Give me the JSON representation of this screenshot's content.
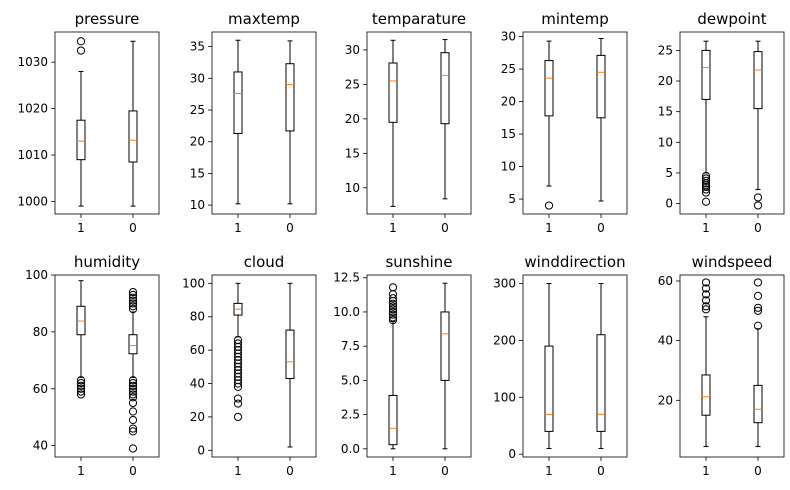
{
  "chart_data": [
    {
      "type": "box",
      "title": "pressure",
      "categories": [
        "1",
        "0"
      ],
      "ylim": [
        997.3,
        1036.5
      ],
      "yticks": [
        1000,
        1010,
        1020,
        1030
      ],
      "boxes": [
        {
          "whislo": 999,
          "q1": 1009,
          "med": 1013,
          "q3": 1017.5,
          "whishi": 1028,
          "fliers": [
            1032.5,
            1034.5
          ]
        },
        {
          "whislo": 999,
          "q1": 1008.5,
          "med": 1013.2,
          "q3": 1019.5,
          "whishi": 1034.5,
          "fliers": []
        }
      ]
    },
    {
      "type": "box",
      "title": "maxtemp",
      "categories": [
        "1",
        "0"
      ],
      "ylim": [
        8.6,
        37.3
      ],
      "yticks": [
        10,
        15,
        20,
        25,
        30,
        35
      ],
      "boxes": [
        {
          "whislo": 10.2,
          "q1": 21.3,
          "med": 27.6,
          "q3": 31,
          "whishi": 36,
          "fliers": []
        },
        {
          "whislo": 10.2,
          "q1": 21.7,
          "med": 29,
          "q3": 32.3,
          "whishi": 35.9,
          "fliers": []
        }
      ]
    },
    {
      "type": "box",
      "title": "temparature",
      "categories": [
        "1",
        "0"
      ],
      "ylim": [
        6.2,
        32.6
      ],
      "yticks": [
        10,
        15,
        20,
        25,
        30
      ],
      "boxes": [
        {
          "whislo": 7.3,
          "q1": 19.5,
          "med": 25.5,
          "q3": 28.1,
          "whishi": 31.4,
          "fliers": []
        },
        {
          "whislo": 8.4,
          "q1": 19.3,
          "med": 26.3,
          "q3": 29.6,
          "whishi": 31.5,
          "fliers": []
        }
      ]
    },
    {
      "type": "box",
      "title": "mintemp",
      "categories": [
        "1",
        "0"
      ],
      "ylim": [
        2.7,
        30.7
      ],
      "yticks": [
        5,
        10,
        15,
        20,
        25,
        30
      ],
      "boxes": [
        {
          "whislo": 7,
          "q1": 17.8,
          "med": 23.6,
          "q3": 26.3,
          "whishi": 29.3,
          "fliers": [
            4
          ]
        },
        {
          "whislo": 4.7,
          "q1": 17.5,
          "med": 24.5,
          "q3": 27.1,
          "whishi": 29.7,
          "fliers": []
        }
      ]
    },
    {
      "type": "box",
      "title": "dewpoint",
      "categories": [
        "1",
        "0"
      ],
      "ylim": [
        -1.7,
        28
      ],
      "yticks": [
        0,
        5,
        10,
        15,
        20,
        25
      ],
      "boxes": [
        {
          "whislo": 5,
          "q1": 17,
          "med": 22.2,
          "q3": 25,
          "whishi": 26.5,
          "fliers": [
            0.3,
            1.8,
            2.3,
            2.7,
            3,
            3.3,
            3.7,
            4.1,
            4.5
          ]
        },
        {
          "whislo": 2.3,
          "q1": 15.5,
          "med": 21.8,
          "q3": 24.8,
          "whishi": 26.5,
          "fliers": [
            -0.3,
            1
          ]
        }
      ]
    },
    {
      "type": "box",
      "title": "humidity",
      "categories": [
        "1",
        "0"
      ],
      "ylim": [
        36,
        100
      ],
      "yticks": [
        40,
        60,
        80,
        100
      ],
      "boxes": [
        {
          "whislo": 64,
          "q1": 79,
          "med": 83.8,
          "q3": 89,
          "whishi": 98,
          "fliers": [
            58,
            59,
            60,
            61,
            62,
            63
          ]
        },
        {
          "whislo": 64,
          "q1": 72.3,
          "med": 75.2,
          "q3": 79,
          "whishi": 87,
          "fliers": [
            39,
            45,
            46,
            49,
            52,
            55,
            57,
            58,
            59,
            60,
            61,
            62,
            63,
            88,
            89,
            90,
            91,
            92,
            93,
            94
          ]
        }
      ]
    },
    {
      "type": "box",
      "title": "cloud",
      "categories": [
        "1",
        "0"
      ],
      "ylim": [
        -4,
        105
      ],
      "yticks": [
        0,
        20,
        40,
        60,
        80,
        100
      ],
      "boxes": [
        {
          "whislo": 68,
          "q1": 81,
          "med": 84.5,
          "q3": 88,
          "whishi": 100,
          "fliers": [
            20,
            28,
            31,
            38,
            40,
            42,
            44,
            46,
            48,
            50,
            52,
            54,
            56,
            58,
            60,
            62,
            64,
            66
          ]
        },
        {
          "whislo": 2,
          "q1": 43,
          "med": 53,
          "q3": 72,
          "whishi": 100,
          "fliers": []
        }
      ]
    },
    {
      "type": "box",
      "title": "sunshine",
      "categories": [
        "1",
        "0"
      ],
      "ylim": [
        -0.6,
        12.7
      ],
      "yticks": [
        0,
        2.5,
        5,
        7.5,
        10,
        12.5
      ],
      "tick_labels": [
        "0.0",
        "2.5",
        "5.0",
        "7.5",
        "10.0",
        "12.5"
      ],
      "boxes": [
        {
          "whislo": 0,
          "q1": 0.3,
          "med": 1.5,
          "q3": 3.9,
          "whishi": 9.3,
          "fliers": [
            9.4,
            9.6,
            9.8,
            10,
            10.2,
            10.4,
            10.6,
            10.8,
            11,
            11.3,
            11.8
          ]
        },
        {
          "whislo": 0,
          "q1": 5,
          "med": 8.4,
          "q3": 10,
          "whishi": 12.1,
          "fliers": []
        }
      ]
    },
    {
      "type": "box",
      "title": "winddirection",
      "categories": [
        "1",
        "0"
      ],
      "ylim": [
        -5,
        315
      ],
      "yticks": [
        0,
        100,
        200,
        300
      ],
      "boxes": [
        {
          "whislo": 10,
          "q1": 40,
          "med": 70,
          "q3": 190,
          "whishi": 300,
          "fliers": []
        },
        {
          "whislo": 10,
          "q1": 40,
          "med": 70,
          "q3": 210,
          "whishi": 300,
          "fliers": []
        }
      ]
    },
    {
      "type": "box",
      "title": "windspeed",
      "categories": [
        "1",
        "0"
      ],
      "ylim": [
        1,
        62
      ],
      "yticks": [
        20,
        40,
        60
      ],
      "boxes": [
        {
          "whislo": 4.5,
          "q1": 15,
          "med": 21.2,
          "q3": 28.5,
          "whishi": 48,
          "fliers": [
            50.5,
            51.5,
            53.5,
            55.5,
            57.5,
            59.5
          ]
        },
        {
          "whislo": 4.5,
          "q1": 12.5,
          "med": 17,
          "q3": 25,
          "whishi": 44,
          "fliers": [
            45,
            50,
            51,
            55,
            59.5
          ]
        }
      ]
    }
  ],
  "colors": {
    "median": "#ff7f0e",
    "box": "#000000",
    "axes": "#000000",
    "background": "#ffffff"
  }
}
